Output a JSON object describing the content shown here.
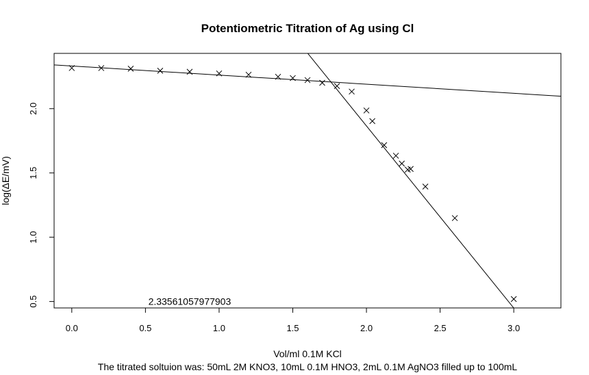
{
  "chart_data": {
    "type": "scatter",
    "title": "Potentiometric Titration of Ag using Cl",
    "xlabel": "Vol/ml 0.1M KCl",
    "ylabel": "log(ΔE/mV)",
    "subtitle": "The titrated soltuion was: 50mL 2M KNO3, 10mL 0.1M HNO3, 2mL 0.1M AgNO3 filled up to 100mL",
    "annotation": {
      "text": "2.33561057977903",
      "x": 0.8,
      "y": 0.5
    },
    "xlim": [
      -0.12,
      3.32
    ],
    "ylim": [
      0.45,
      2.43
    ],
    "xticks": [
      {
        "value": 0.0,
        "label": "0.0"
      },
      {
        "value": 0.5,
        "label": "0.5"
      },
      {
        "value": 1.0,
        "label": "1.0"
      },
      {
        "value": 1.5,
        "label": "1.5"
      },
      {
        "value": 2.0,
        "label": "2.0"
      },
      {
        "value": 2.5,
        "label": "2.5"
      },
      {
        "value": 3.0,
        "label": "3.0"
      }
    ],
    "yticks": [
      {
        "value": 0.5,
        "label": "0.5"
      },
      {
        "value": 1.0,
        "label": "1.0"
      },
      {
        "value": 1.5,
        "label": "1.5"
      },
      {
        "value": 2.0,
        "label": "2.0"
      }
    ],
    "marker": "x",
    "points": [
      {
        "x": 0.0,
        "y": 2.316
      },
      {
        "x": 0.2,
        "y": 2.316
      },
      {
        "x": 0.4,
        "y": 2.311
      },
      {
        "x": 0.6,
        "y": 2.295
      },
      {
        "x": 0.8,
        "y": 2.287
      },
      {
        "x": 1.0,
        "y": 2.274
      },
      {
        "x": 1.2,
        "y": 2.264
      },
      {
        "x": 1.4,
        "y": 2.248
      },
      {
        "x": 1.5,
        "y": 2.238
      },
      {
        "x": 1.6,
        "y": 2.222
      },
      {
        "x": 1.7,
        "y": 2.201
      },
      {
        "x": 1.8,
        "y": 2.176
      },
      {
        "x": 1.9,
        "y": 2.133
      },
      {
        "x": 2.0,
        "y": 1.986
      },
      {
        "x": 2.04,
        "y": 1.903
      },
      {
        "x": 2.12,
        "y": 1.716
      },
      {
        "x": 2.2,
        "y": 1.634
      },
      {
        "x": 2.24,
        "y": 1.573
      },
      {
        "x": 2.28,
        "y": 1.526
      },
      {
        "x": 2.3,
        "y": 1.531
      },
      {
        "x": 2.4,
        "y": 1.394
      },
      {
        "x": 2.6,
        "y": 1.149
      },
      {
        "x": 3.0,
        "y": 0.519
      }
    ],
    "fit_lines": [
      {
        "name": "",
        "x": [
          -0.12,
          3.32
        ],
        "y": [
          2.3404,
          2.0968
        ]
      },
      {
        "name": "",
        "x": [
          1.51,
          3.07
        ],
        "y": [
          2.56,
          0.35
        ]
      }
    ]
  }
}
